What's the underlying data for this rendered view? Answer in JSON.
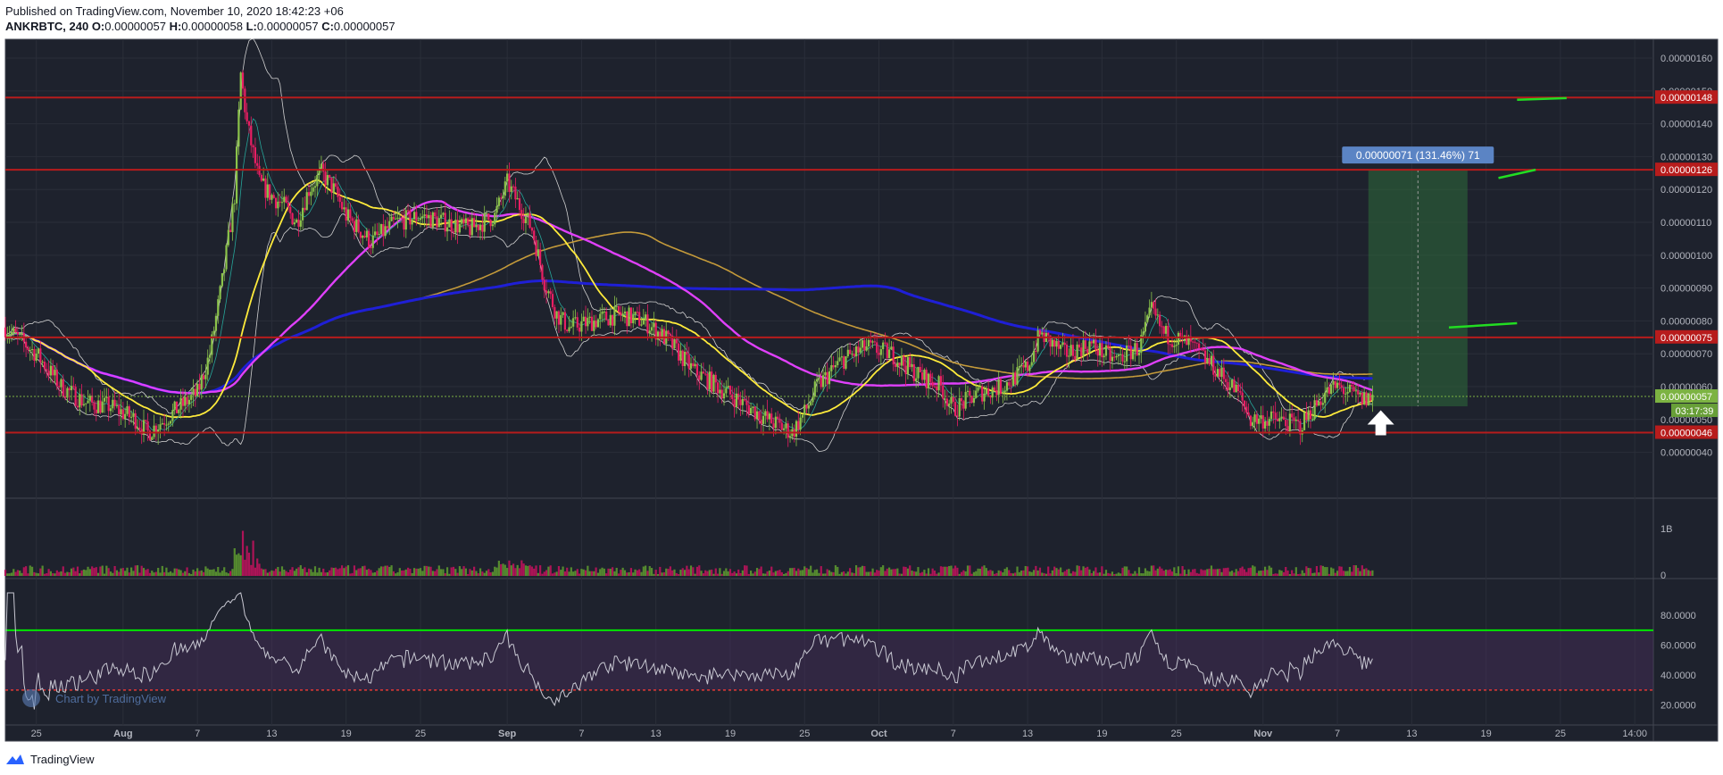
{
  "header": {
    "published": "Published on TradingView.com, November 10, 2020 18:42:23 +06",
    "symbol": "ANKRBTC, 240",
    "o_label": "O:",
    "o_value": "0.00000057",
    "h_label": "H:",
    "h_value": "0.00000058",
    "l_label": "L:",
    "l_value": "0.00000057",
    "c_label": "C:",
    "c_value": "0.00000057"
  },
  "footer": {
    "brand": "TradingView"
  },
  "watermark": "Chart by TradingView",
  "colors": {
    "background": "#1e222d",
    "grid": "#2a2e39",
    "text": "#b2b5be",
    "up": "#8bc34a",
    "down": "#e91e63",
    "level": "#b71c1c",
    "ma_yellow": "#ffeb3b",
    "ma_magenta": "#e040fb",
    "ma_blue": "#1f1fd6",
    "ma_orange": "#c49a3a",
    "bollinger": "#d0d0d0",
    "rsi_line": "#c8c8d2",
    "rsi_upper": "#00e600",
    "rsi_lower": "#e53935",
    "position_green": "#2e6b3a",
    "last_price_bg": "#7cb342",
    "tag_blue": "#5b84c4"
  },
  "chart_data": {
    "type": "candlestick",
    "symbol": "ANKRBTC",
    "interval": "240",
    "price_axis": {
      "range": [
        3.5e-07,
        1.63e-06
      ],
      "ticks": [
        "0.00000040",
        "0.00000050",
        "0.00000060",
        "0.00000070",
        "0.00000080",
        "0.00000090",
        "0.00000100",
        "0.00000110",
        "0.00000120",
        "0.00000130",
        "0.00000140",
        "0.00000150",
        "0.00000160"
      ]
    },
    "time_axis": {
      "labels": [
        "25",
        "Aug",
        "7",
        "13",
        "19",
        "25",
        "Sep",
        "7",
        "13",
        "19",
        "25",
        "Oct",
        "7",
        "13",
        "19",
        "25",
        "Nov",
        "7",
        "13",
        "19",
        "25",
        "14:00"
      ],
      "bold_labels": [
        "Aug",
        "Sep",
        "Oct",
        "Nov"
      ],
      "days": [
        -7,
        0,
        6,
        12,
        18,
        24,
        31,
        37,
        43,
        49,
        55,
        61,
        67,
        73,
        79,
        85,
        92,
        98,
        104,
        110,
        116,
        122
      ],
      "range_days": [
        -9.5,
        123.5
      ]
    },
    "price_path": [
      [
        -9.5,
        7.8e-07
      ],
      [
        -7,
        7e-07
      ],
      [
        -5,
        6e-07
      ],
      [
        -3,
        5.5e-07
      ],
      [
        -1,
        5.4e-07
      ],
      [
        1,
        5e-07
      ],
      [
        2,
        4.6e-07
      ],
      [
        4,
        5.2e-07
      ],
      [
        6,
        5.8e-07
      ],
      [
        7,
        7e-07
      ],
      [
        8,
        9.2e-07
      ],
      [
        9,
        1.18e-06
      ],
      [
        9.5,
        1.55e-06
      ],
      [
        10,
        1.4e-06
      ],
      [
        11,
        1.22e-06
      ],
      [
        12,
        1.18e-06
      ],
      [
        13,
        1.15e-06
      ],
      [
        14,
        1.1e-06
      ],
      [
        15,
        1.2e-06
      ],
      [
        16,
        1.25e-06
      ],
      [
        17,
        1.2e-06
      ],
      [
        18,
        1.12e-06
      ],
      [
        19,
        1.08e-06
      ],
      [
        20,
        1.04e-06
      ],
      [
        22,
        1.1e-06
      ],
      [
        24,
        1.12e-06
      ],
      [
        26,
        1.1e-06
      ],
      [
        28,
        1.08e-06
      ],
      [
        30,
        1.12e-06
      ],
      [
        31,
        1.22e-06
      ],
      [
        32,
        1.15e-06
      ],
      [
        33,
        1.08e-06
      ],
      [
        34,
        9.2e-07
      ],
      [
        35,
        8.2e-07
      ],
      [
        36,
        7.8e-07
      ],
      [
        38,
        8e-07
      ],
      [
        40,
        8.2e-07
      ],
      [
        42,
        8e-07
      ],
      [
        44,
        7.4e-07
      ],
      [
        46,
        6.5e-07
      ],
      [
        48,
        6e-07
      ],
      [
        50,
        5.5e-07
      ],
      [
        52,
        5e-07
      ],
      [
        54,
        4.6e-07
      ],
      [
        55,
        5.2e-07
      ],
      [
        56,
        6e-07
      ],
      [
        58,
        6.8e-07
      ],
      [
        60,
        7.2e-07
      ],
      [
        62,
        7e-07
      ],
      [
        64,
        6.4e-07
      ],
      [
        66,
        6e-07
      ],
      [
        67,
        5.3e-07
      ],
      [
        69,
        5.8e-07
      ],
      [
        71,
        6e-07
      ],
      [
        73,
        6.6e-07
      ],
      [
        74,
        7.6e-07
      ],
      [
        76,
        7e-07
      ],
      [
        78,
        7.3e-07
      ],
      [
        80,
        6.8e-07
      ],
      [
        82,
        7.2e-07
      ],
      [
        83,
        8.3e-07
      ],
      [
        84,
        7.6e-07
      ],
      [
        86,
        7.3e-07
      ],
      [
        88,
        6.6e-07
      ],
      [
        90,
        5.8e-07
      ],
      [
        91,
        5e-07
      ],
      [
        93,
        5e-07
      ],
      [
        95,
        4.8e-07
      ],
      [
        96,
        5.3e-07
      ],
      [
        97,
        5.8e-07
      ],
      [
        98,
        6e-07
      ],
      [
        100,
        5.6e-07
      ],
      [
        101,
        5.7e-07
      ]
    ],
    "horizontal_levels": [
      {
        "price": 1.48e-06,
        "label": "0.00000148"
      },
      {
        "price": 1.26e-06,
        "label": "0.00000126"
      },
      {
        "price": 7.5e-07,
        "label": "0.00000075"
      },
      {
        "price": 4.6e-07,
        "label": "0.00000046"
      }
    ],
    "last_price": {
      "label": "0.00000057",
      "price": 5.7e-07,
      "countdown": "03:17:39"
    },
    "position": {
      "start_day": 100.5,
      "end_day": 108.5,
      "entry": 5.4e-07,
      "target": 1.26e-06,
      "label": "0.00000071 (131.46%) 71"
    },
    "volume_axis": {
      "ticks": [
        "0",
        "1B"
      ]
    },
    "rsi": {
      "axis_ticks": [
        "20.0000",
        "40.0000",
        "60.0000",
        "80.0000"
      ],
      "range": [
        15,
        95
      ],
      "upper_band": 70,
      "lower_band": 30
    }
  }
}
